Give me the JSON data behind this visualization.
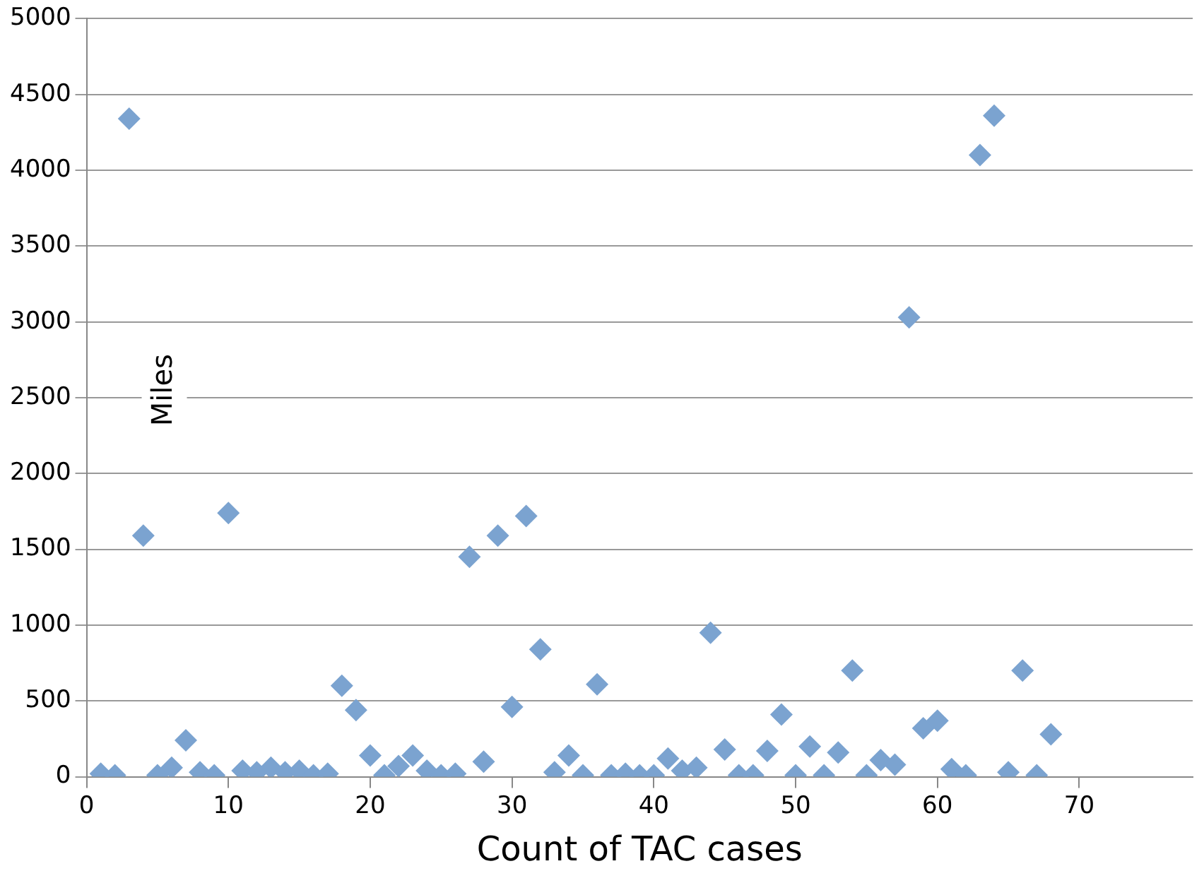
{
  "chart_data": {
    "type": "scatter",
    "xlabel": "Count of TAC cases",
    "ylabel": "Miles",
    "x": [
      1,
      2,
      3,
      4,
      5,
      6,
      7,
      8,
      9,
      10,
      11,
      12,
      13,
      14,
      15,
      16,
      17,
      18,
      19,
      20,
      21,
      22,
      23,
      24,
      25,
      26,
      27,
      28,
      29,
      30,
      31,
      32,
      33,
      34,
      35,
      36,
      37,
      38,
      39,
      40,
      41,
      42,
      43,
      44,
      45,
      46,
      47,
      48,
      49,
      50,
      51,
      52,
      53,
      54,
      55,
      56,
      57,
      58,
      59,
      60,
      61,
      62,
      63,
      64,
      65,
      66,
      67,
      68
    ],
    "values": [
      20,
      10,
      4340,
      1590,
      10,
      60,
      240,
      30,
      10,
      1740,
      40,
      30,
      60,
      30,
      40,
      10,
      20,
      600,
      440,
      140,
      10,
      70,
      140,
      40,
      10,
      20,
      1450,
      100,
      1590,
      460,
      1720,
      840,
      30,
      140,
      10,
      610,
      10,
      20,
      10,
      10,
      120,
      40,
      60,
      950,
      180,
      10,
      10,
      170,
      410,
      10,
      200,
      10,
      160,
      700,
      10,
      110,
      80,
      3030,
      320,
      370,
      50,
      10,
      4100,
      4360,
      30,
      700,
      10,
      280
    ],
    "color": "#7ba3d0",
    "marker": "diamond",
    "xlim": [
      0,
      78
    ],
    "xticks": [
      0,
      10,
      20,
      30,
      40,
      50,
      60,
      70
    ],
    "ylim": [
      0,
      5000
    ],
    "yticks": [
      0,
      500,
      1000,
      1500,
      2000,
      2500,
      3000,
      3500,
      4000,
      4500,
      5000
    ],
    "grid": "y",
    "legend": false
  }
}
